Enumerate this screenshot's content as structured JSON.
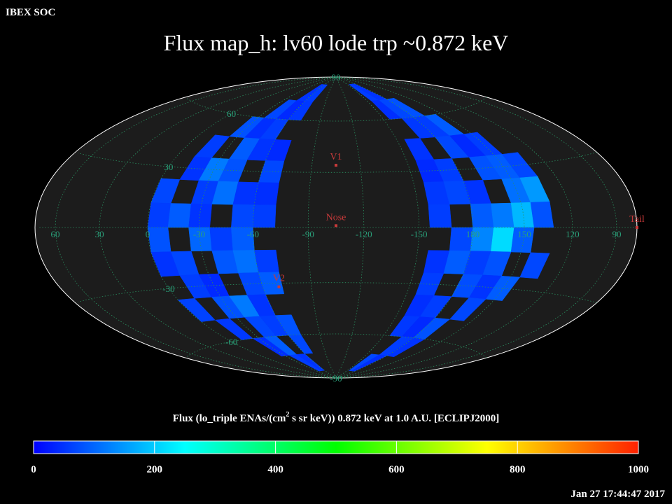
{
  "header": {
    "source": "IBEX SOC",
    "title": "Flux   map_h: lv60 lode trp ~0.872 keV",
    "timestamp": "Jan 27 17:44:47 2017"
  },
  "map": {
    "center_lon": 255,
    "lon_labels": [
      60,
      30,
      0,
      -30,
      -60,
      -90,
      -120,
      -150,
      180,
      150,
      120,
      90
    ],
    "lat_labels": [
      90,
      60,
      30,
      -30,
      -60,
      -90
    ],
    "markers": [
      {
        "name": "V1",
        "lon": 255,
        "lat": 34
      },
      {
        "name": "Nose",
        "lon": 255,
        "lat": 1
      },
      {
        "name": "V2",
        "lon": 290,
        "lat": -32
      },
      {
        "name": "Tail",
        "lon": 75,
        "lat": 0
      }
    ],
    "lat_edges": [
      84,
      72,
      60,
      48,
      36,
      24,
      12,
      0,
      -12,
      -24,
      -36,
      -48,
      -60,
      -72,
      -84
    ],
    "bands": [
      {
        "lon_edges": [
          0,
          -12,
          -24,
          -36,
          -48,
          -60,
          -72
        ],
        "flux": [
          [
            null,
            null,
            null,
            null,
            50,
            60
          ],
          [
            null,
            null,
            null,
            70,
            40,
            55
          ],
          [
            null,
            null,
            80,
            45,
            60,
            null
          ],
          [
            null,
            60,
            null,
            90,
            50,
            40
          ],
          [
            null,
            50,
            120,
            80,
            null,
            70
          ],
          [
            70,
            null,
            60,
            110,
            50,
            45
          ],
          [
            60,
            90,
            50,
            null,
            70,
            60
          ],
          [
            80,
            null,
            100,
            60,
            90,
            null
          ],
          [
            50,
            70,
            null,
            85,
            110,
            60
          ],
          [
            null,
            60,
            40,
            null,
            70,
            90
          ],
          [
            65,
            null,
            80,
            120,
            50,
            null
          ],
          [
            null,
            55,
            null,
            70,
            60,
            80
          ],
          [
            null,
            null,
            45,
            90,
            null,
            70
          ],
          [
            null,
            null,
            null,
            60,
            50,
            null
          ]
        ]
      },
      {
        "lon_edges": [
          204,
          192,
          180,
          168,
          156,
          144,
          132
        ],
        "flux": [
          [
            60,
            50,
            null,
            null,
            null,
            null
          ],
          [
            45,
            70,
            80,
            null,
            null,
            null
          ],
          [
            null,
            55,
            60,
            90,
            null,
            null
          ],
          [
            50,
            null,
            70,
            40,
            60,
            null
          ],
          [
            40,
            60,
            null,
            80,
            90,
            70
          ],
          [
            55,
            70,
            50,
            null,
            110,
            150
          ],
          [
            60,
            null,
            90,
            120,
            180,
            80
          ],
          [
            null,
            70,
            130,
            215,
            90,
            null
          ],
          [
            50,
            90,
            60,
            80,
            null,
            70
          ],
          [
            60,
            null,
            75,
            50,
            90,
            null
          ],
          [
            45,
            60,
            null,
            70,
            null,
            null
          ],
          [
            55,
            40,
            80,
            null,
            null,
            null
          ],
          [
            null,
            60,
            50,
            null,
            null,
            null
          ],
          [
            70,
            45,
            null,
            null,
            null,
            null
          ]
        ]
      }
    ]
  },
  "colorbar": {
    "label_parts": [
      "Flux (lo_triple ENAs/(cm",
      "2",
      " s sr keV))  0.872 keV at 1.0 A.U. [ECLIPJ2000]"
    ],
    "ticks": [
      0,
      200,
      400,
      600,
      800,
      1000
    ],
    "stops": [
      {
        "value": 0,
        "color": "#0000ff"
      },
      {
        "value": 250,
        "color": "#00ffff"
      },
      {
        "value": 500,
        "color": "#00ff00"
      },
      {
        "value": 750,
        "color": "#ffff00"
      },
      {
        "value": 1000,
        "color": "#ff2000"
      }
    ]
  }
}
